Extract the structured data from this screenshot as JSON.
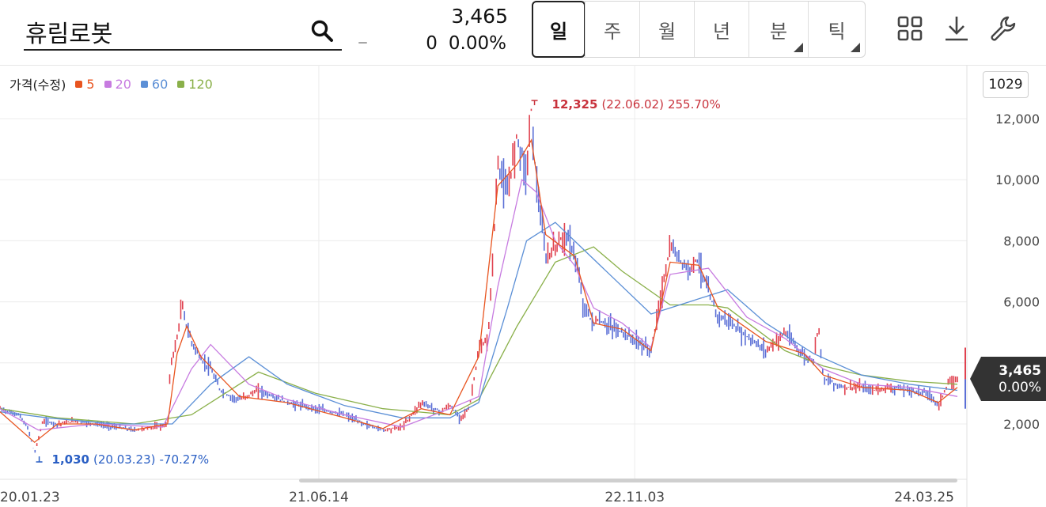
{
  "header": {
    "stock_name": "휴림로봇",
    "dash": "–",
    "price": "3,465",
    "change_value": "0",
    "change_percent": "0.00%",
    "period_tabs": [
      {
        "label": "일",
        "active": true,
        "has_menu": false
      },
      {
        "label": "주",
        "active": false,
        "has_menu": false
      },
      {
        "label": "월",
        "active": false,
        "has_menu": false
      },
      {
        "label": "년",
        "active": false,
        "has_menu": false
      },
      {
        "label": "분",
        "active": false,
        "has_menu": true
      },
      {
        "label": "틱",
        "active": false,
        "has_menu": true
      }
    ],
    "tools": [
      "grid-icon",
      "download-icon",
      "wrench-icon"
    ]
  },
  "legend": {
    "title": "가격(수정)",
    "items": [
      {
        "label": "5",
        "color": "#e8541f"
      },
      {
        "label": "20",
        "color": "#c77be0"
      },
      {
        "label": "60",
        "color": "#5b8fd6"
      },
      {
        "label": "120",
        "color": "#8ab04a"
      }
    ]
  },
  "count_badge": "1029",
  "current_price_tag": {
    "price": "3,465",
    "percent": "0.00%"
  },
  "chart_data": {
    "type": "line",
    "x_tick_labels": [
      "20.01.23",
      "21.06.14",
      "22.11.03",
      "24.03.25"
    ],
    "y_tick_labels": [
      "2,000",
      "4,000",
      "6,000",
      "8,000",
      "10,000",
      "12,000"
    ],
    "y_ticks": [
      2000,
      4000,
      6000,
      8000,
      10000,
      12000
    ],
    "ylim": [
      500,
      13500
    ],
    "grid": true,
    "legend_placement": "top-left",
    "annotations": {
      "high": {
        "value_label": "12,325",
        "date_label": "(22.06.02)",
        "pct_label": "255.70%",
        "value": 12325,
        "x": 0.555
      },
      "low": {
        "value_label": "1,030",
        "date_label": "(20.03.23)",
        "pct_label": "-70.27%",
        "value": 1030,
        "x": 0.036
      }
    },
    "current_value": 3465,
    "colors": {
      "up": "#e0414f",
      "down": "#5b6fd6"
    },
    "price_series": {
      "x": [
        0,
        0.01,
        0.02,
        0.03,
        0.036,
        0.045,
        0.06,
        0.08,
        0.1,
        0.12,
        0.14,
        0.16,
        0.175,
        0.178,
        0.185,
        0.19,
        0.195,
        0.2,
        0.21,
        0.22,
        0.23,
        0.24,
        0.25,
        0.27,
        0.3,
        0.33,
        0.36,
        0.38,
        0.4,
        0.42,
        0.44,
        0.46,
        0.47,
        0.48,
        0.49,
        0.5,
        0.51,
        0.52,
        0.53,
        0.54,
        0.55,
        0.555,
        0.56,
        0.57,
        0.58,
        0.59,
        0.6,
        0.61,
        0.62,
        0.625,
        0.63,
        0.65,
        0.68,
        0.7,
        0.72,
        0.725,
        0.73,
        0.74,
        0.75,
        0.76,
        0.77,
        0.8,
        0.82,
        0.84,
        0.85,
        0.855,
        0.86,
        0.88,
        0.9,
        0.91,
        0.93,
        0.95,
        0.97,
        0.98,
        0.99,
        1.0
      ],
      "values": [
        2500,
        2400,
        2300,
        1800,
        1030,
        2100,
        2000,
        2100,
        2000,
        1900,
        1800,
        1900,
        1950,
        3900,
        4800,
        5900,
        5200,
        4700,
        4100,
        3800,
        3100,
        2900,
        2800,
        3100,
        2700,
        2500,
        2300,
        2000,
        1800,
        1900,
        2700,
        2400,
        2600,
        2200,
        2500,
        4400,
        4800,
        10500,
        9500,
        11500,
        10200,
        12325,
        10000,
        7400,
        7800,
        8200,
        7600,
        5800,
        5300,
        5400,
        5300,
        5000,
        4400,
        7800,
        7000,
        7400,
        7300,
        6300,
        5500,
        5400,
        5100,
        4400,
        5000,
        4200,
        4100,
        5300,
        3500,
        3200,
        3200,
        3100,
        3200,
        3100,
        3000,
        2600,
        3300,
        3465
      ]
    },
    "ma5": {
      "x": [
        0,
        0.036,
        0.06,
        0.1,
        0.14,
        0.175,
        0.185,
        0.195,
        0.21,
        0.25,
        0.3,
        0.36,
        0.4,
        0.44,
        0.47,
        0.5,
        0.52,
        0.54,
        0.555,
        0.57,
        0.6,
        0.62,
        0.65,
        0.68,
        0.7,
        0.73,
        0.75,
        0.8,
        0.84,
        0.86,
        0.9,
        0.95,
        0.98,
        1.0
      ],
      "values": [
        2400,
        1400,
        2000,
        2000,
        1800,
        2000,
        4300,
        5200,
        4200,
        2900,
        2700,
        2200,
        1850,
        2500,
        2300,
        4200,
        9800,
        10500,
        11300,
        8200,
        7500,
        5300,
        5100,
        4400,
        7300,
        7200,
        5800,
        4700,
        4300,
        3600,
        3200,
        3100,
        2700,
        3200
      ]
    },
    "ma20": {
      "x": [
        0,
        0.04,
        0.1,
        0.17,
        0.2,
        0.22,
        0.26,
        0.3,
        0.36,
        0.42,
        0.47,
        0.5,
        0.52,
        0.545,
        0.56,
        0.58,
        0.6,
        0.62,
        0.65,
        0.68,
        0.7,
        0.74,
        0.78,
        0.82,
        0.86,
        0.9,
        0.95,
        1.0
      ],
      "values": [
        2500,
        1800,
        2000,
        1900,
        3800,
        4600,
        3300,
        2800,
        2300,
        1900,
        2500,
        2900,
        6500,
        10000,
        9600,
        8000,
        7200,
        5800,
        5300,
        4500,
        6900,
        7100,
        5500,
        4800,
        3800,
        3300,
        3200,
        2900
      ]
    },
    "ma60": {
      "x": [
        0,
        0.05,
        0.12,
        0.18,
        0.22,
        0.26,
        0.3,
        0.36,
        0.42,
        0.47,
        0.5,
        0.53,
        0.55,
        0.58,
        0.6,
        0.64,
        0.68,
        0.72,
        0.76,
        0.8,
        0.85,
        0.9,
        0.95,
        1.0
      ],
      "values": [
        2400,
        2200,
        2000,
        2000,
        3300,
        4200,
        3300,
        2600,
        2200,
        2200,
        2700,
        5800,
        8000,
        8600,
        8000,
        6800,
        5600,
        6000,
        6400,
        5300,
        4300,
        3600,
        3300,
        3100
      ]
    },
    "ma120": {
      "x": [
        0,
        0.06,
        0.14,
        0.2,
        0.27,
        0.33,
        0.4,
        0.47,
        0.5,
        0.54,
        0.58,
        0.62,
        0.65,
        0.7,
        0.74,
        0.76,
        0.82,
        0.86,
        0.9,
        0.95,
        1.0
      ],
      "values": [
        2500,
        2200,
        2000,
        2300,
        3700,
        3000,
        2500,
        2300,
        2800,
        5200,
        7300,
        7800,
        7000,
        5900,
        5900,
        5800,
        4400,
        3900,
        3600,
        3400,
        3300
      ]
    }
  }
}
